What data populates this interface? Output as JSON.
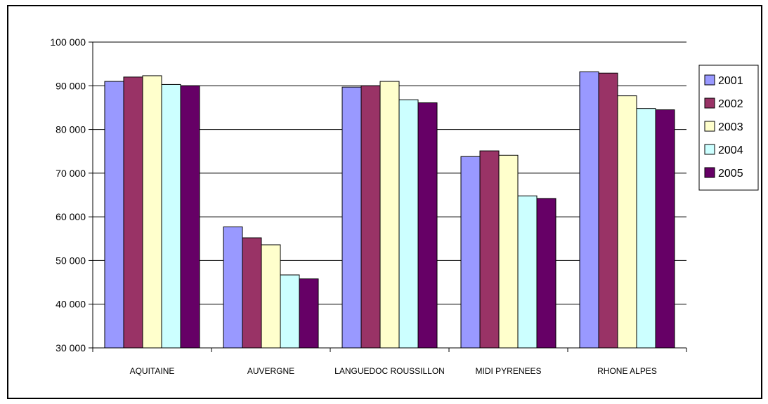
{
  "chart_data": {
    "type": "bar",
    "title": "",
    "xlabel": "",
    "ylabel": "",
    "categories": [
      "AQUITAINE",
      "AUVERGNE",
      "LANGUEDOC ROUSSILLON",
      "MIDI PYRENEES",
      "RHONE ALPES"
    ],
    "series": [
      {
        "name": "2001",
        "color": "#9999ff",
        "values": [
          91000,
          57700,
          89700,
          73800,
          93200
        ]
      },
      {
        "name": "2002",
        "color": "#993366",
        "values": [
          92000,
          55200,
          90000,
          75100,
          92900
        ]
      },
      {
        "name": "2003",
        "color": "#ffffcc",
        "values": [
          92300,
          53600,
          91000,
          74100,
          87700
        ]
      },
      {
        "name": "2004",
        "color": "#ccffff",
        "values": [
          90300,
          46700,
          86800,
          64800,
          84800
        ]
      },
      {
        "name": "2005",
        "color": "#660066",
        "values": [
          90000,
          45800,
          86100,
          64200,
          84500
        ]
      }
    ],
    "ylim": [
      30000,
      100000
    ],
    "yticks": [
      30000,
      40000,
      50000,
      60000,
      70000,
      80000,
      90000,
      100000
    ],
    "ytick_labels": [
      "30 000",
      "40 000",
      "50 000",
      "60 000",
      "70 000",
      "80 000",
      "90 000",
      "100 000"
    ],
    "grid": true,
    "legend_position": "right"
  }
}
